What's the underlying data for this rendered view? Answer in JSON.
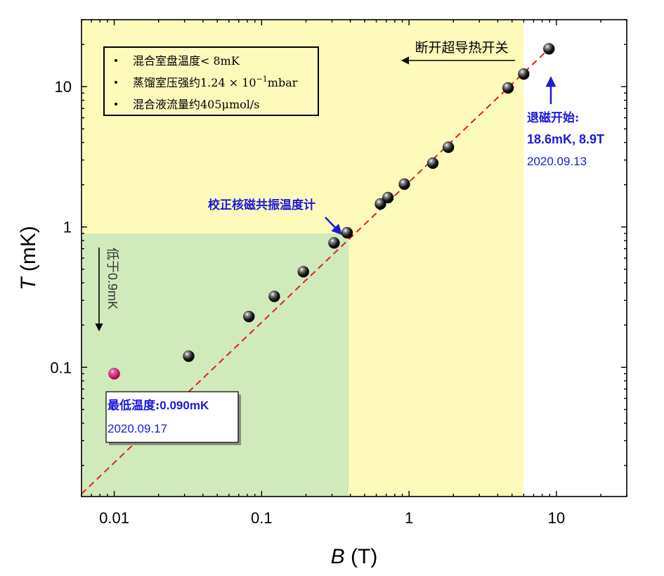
{
  "chart_data": {
    "type": "scatter",
    "xscale": "log",
    "yscale": "log",
    "xlim": [
      0.006,
      30
    ],
    "ylim": [
      0.012,
      30
    ],
    "x_ticks": [
      0.01,
      0.1,
      1,
      10
    ],
    "x_tick_labels": [
      "0.01",
      "0.1",
      "1",
      "10"
    ],
    "y_ticks": [
      0.1,
      1,
      10
    ],
    "y_tick_labels": [
      "0.1",
      "1",
      "10"
    ],
    "xlabel": {
      "symbol": "B",
      "unit": "(T)"
    },
    "ylabel": {
      "symbol": "T",
      "unit": "(mK)"
    },
    "series": [
      {
        "name": "measurements",
        "color": "#111111",
        "points": [
          {
            "x": 0.032,
            "y": 0.12
          },
          {
            "x": 0.082,
            "y": 0.23
          },
          {
            "x": 0.122,
            "y": 0.32
          },
          {
            "x": 0.192,
            "y": 0.48
          },
          {
            "x": 0.31,
            "y": 0.77
          },
          {
            "x": 0.38,
            "y": 0.91
          },
          {
            "x": 0.64,
            "y": 1.46
          },
          {
            "x": 0.72,
            "y": 1.62
          },
          {
            "x": 0.93,
            "y": 2.02
          },
          {
            "x": 1.45,
            "y": 2.85
          },
          {
            "x": 1.85,
            "y": 3.7
          },
          {
            "x": 4.7,
            "y": 9.8
          },
          {
            "x": 6.0,
            "y": 12.3
          },
          {
            "x": 8.9,
            "y": 18.6
          }
        ]
      },
      {
        "name": "lowest",
        "color": "#e8197a",
        "points": [
          {
            "x": 0.01,
            "y": 0.09
          }
        ]
      }
    ],
    "fit_line": {
      "color": "#e02020",
      "style": "dashed",
      "x_range": [
        0.006,
        9.5
      ],
      "slope_t_per_b": 2.09
    },
    "regions": [
      {
        "name": "yellow-region",
        "color": "#fdfabc",
        "x_range": [
          0.006,
          6.0
        ],
        "y_range": [
          0.012,
          30
        ]
      },
      {
        "name": "green-region",
        "color": "#d0eabb",
        "x_range": [
          0.006,
          0.39
        ],
        "y_range": [
          0.012,
          0.9
        ]
      }
    ]
  },
  "legend_box": {
    "items": [
      {
        "text": "混合室盘温度< 8mK"
      },
      {
        "text_pre": "蒸馏室压强约1.24 × 10",
        "sup": "−1",
        "text_post": "mbar"
      },
      {
        "text": "混合液流量约405μmol/s"
      }
    ]
  },
  "annotations": {
    "switch_label": "断开超导热开关",
    "demag_start_title": "退磁开始:",
    "demag_start_value": "18.6mK, 8.9T",
    "demag_start_date": "2020.09.13",
    "calibration_label": "校正核磁共振温度计",
    "below_label": "低于0.9mK",
    "lowest_title": "最低温度:",
    "lowest_value": "0.090mK",
    "lowest_date": "2020.09.17"
  }
}
